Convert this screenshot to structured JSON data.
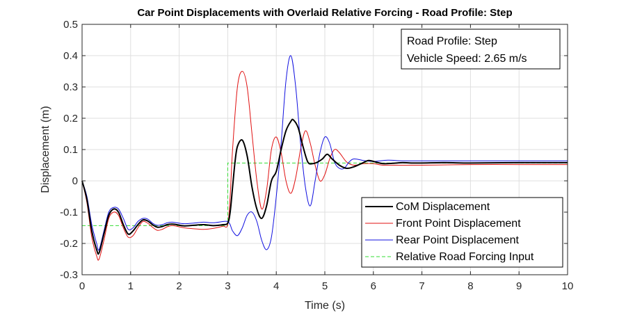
{
  "chart_data": {
    "type": "line",
    "title": "Car Point Displacements with Overlaid Relative Forcing - Road Profile: Step",
    "xlabel": "Time (s)",
    "ylabel": "Displacement (m)",
    "xlim": [
      0,
      10
    ],
    "ylim": [
      -0.3,
      0.5
    ],
    "xticks": [
      "0",
      "1",
      "2",
      "3",
      "4",
      "5",
      "6",
      "7",
      "8",
      "9",
      "10"
    ],
    "yticks": [
      "-0.3",
      "-0.2",
      "-0.1",
      "0",
      "0.1",
      "0.2",
      "0.3",
      "0.4",
      "0.5"
    ],
    "grid": true,
    "legend_position": "bottom-right",
    "annotation": [
      "Road Profile: Step",
      "Vehicle Speed: 2.65 m/s"
    ],
    "series": [
      {
        "name": "CoM Displacement",
        "color": "#000000",
        "style": "solid",
        "x": [
          0,
          0.1,
          0.2,
          0.3,
          0.35,
          0.45,
          0.55,
          0.65,
          0.75,
          0.85,
          0.95,
          1.05,
          1.15,
          1.25,
          1.35,
          1.45,
          1.55,
          1.65,
          1.75,
          1.85,
          1.95,
          2.1,
          2.3,
          2.5,
          2.7,
          2.9,
          3.0,
          3.05,
          3.1,
          3.15,
          3.2,
          3.3,
          3.4,
          3.5,
          3.6,
          3.7,
          3.8,
          3.9,
          4.0,
          4.1,
          4.2,
          4.3,
          4.35,
          4.45,
          4.55,
          4.65,
          4.75,
          4.85,
          4.95,
          5.05,
          5.15,
          5.3,
          5.45,
          5.6,
          5.75,
          5.9,
          6.05,
          6.2,
          6.4,
          6.6,
          6.8,
          7.0,
          7.5,
          8.0,
          9.0,
          10.0
        ],
        "y": [
          0,
          -0.06,
          -0.16,
          -0.22,
          -0.23,
          -0.17,
          -0.11,
          -0.09,
          -0.1,
          -0.14,
          -0.17,
          -0.16,
          -0.14,
          -0.125,
          -0.128,
          -0.14,
          -0.148,
          -0.146,
          -0.14,
          -0.138,
          -0.14,
          -0.144,
          -0.142,
          -0.14,
          -0.143,
          -0.14,
          -0.135,
          -0.1,
          -0.02,
          0.06,
          0.11,
          0.13,
          0.08,
          -0.02,
          -0.09,
          -0.12,
          -0.08,
          0.0,
          0.03,
          0.1,
          0.16,
          0.19,
          0.195,
          0.17,
          0.11,
          0.06,
          0.055,
          0.06,
          0.07,
          0.085,
          0.07,
          0.05,
          0.04,
          0.045,
          0.055,
          0.065,
          0.06,
          0.055,
          0.056,
          0.058,
          0.057,
          0.057,
          0.058,
          0.057,
          0.058,
          0.058
        ]
      },
      {
        "name": "Front Point Displacement",
        "color": "#e01010",
        "style": "solid",
        "x": [
          0,
          0.1,
          0.2,
          0.3,
          0.35,
          0.45,
          0.55,
          0.65,
          0.75,
          0.85,
          0.95,
          1.05,
          1.15,
          1.25,
          1.35,
          1.45,
          1.55,
          1.65,
          1.75,
          1.85,
          1.95,
          2.1,
          2.3,
          2.5,
          2.7,
          2.9,
          3.0,
          3.05,
          3.1,
          3.2,
          3.3,
          3.4,
          3.5,
          3.6,
          3.7,
          3.8,
          3.9,
          4.0,
          4.1,
          4.2,
          4.3,
          4.4,
          4.5,
          4.6,
          4.7,
          4.8,
          4.9,
          5.0,
          5.1,
          5.2,
          5.3,
          5.45,
          5.6,
          5.8,
          6.0,
          6.2,
          6.5,
          7.0,
          8.0,
          9.0,
          10.0
        ],
        "y": [
          0,
          -0.07,
          -0.18,
          -0.24,
          -0.25,
          -0.19,
          -0.12,
          -0.1,
          -0.11,
          -0.15,
          -0.18,
          -0.175,
          -0.15,
          -0.13,
          -0.135,
          -0.148,
          -0.158,
          -0.155,
          -0.147,
          -0.143,
          -0.145,
          -0.15,
          -0.153,
          -0.155,
          -0.152,
          -0.145,
          -0.14,
          -0.05,
          0.1,
          0.3,
          0.35,
          0.3,
          0.15,
          0.0,
          -0.09,
          -0.03,
          0.1,
          0.14,
          0.09,
          0.0,
          -0.04,
          0.01,
          0.1,
          0.16,
          0.12,
          0.05,
          0.0,
          0.02,
          0.07,
          0.1,
          0.09,
          0.06,
          0.05,
          0.055,
          0.055,
          0.05,
          0.05,
          0.05,
          0.052,
          0.052,
          0.052
        ]
      },
      {
        "name": "Rear Point Displacement",
        "color": "#1010e0",
        "style": "solid",
        "x": [
          0,
          0.1,
          0.2,
          0.3,
          0.35,
          0.45,
          0.55,
          0.65,
          0.75,
          0.85,
          0.95,
          1.05,
          1.15,
          1.25,
          1.35,
          1.45,
          1.55,
          1.65,
          1.75,
          1.85,
          1.95,
          2.1,
          2.3,
          2.5,
          2.7,
          2.9,
          3.0,
          3.05,
          3.1,
          3.2,
          3.3,
          3.4,
          3.5,
          3.6,
          3.7,
          3.8,
          3.9,
          4.0,
          4.1,
          4.2,
          4.3,
          4.4,
          4.5,
          4.6,
          4.7,
          4.8,
          4.9,
          5.0,
          5.1,
          5.2,
          5.3,
          5.4,
          5.5,
          5.6,
          5.8,
          6.0,
          6.3,
          6.6,
          7.0,
          8.0,
          9.0,
          10.0
        ],
        "y": [
          0,
          -0.05,
          -0.14,
          -0.2,
          -0.22,
          -0.16,
          -0.1,
          -0.085,
          -0.09,
          -0.12,
          -0.155,
          -0.15,
          -0.13,
          -0.12,
          -0.122,
          -0.135,
          -0.142,
          -0.14,
          -0.134,
          -0.132,
          -0.134,
          -0.137,
          -0.135,
          -0.132,
          -0.134,
          -0.13,
          -0.13,
          -0.14,
          -0.16,
          -0.175,
          -0.15,
          -0.11,
          -0.1,
          -0.13,
          -0.19,
          -0.22,
          -0.18,
          -0.05,
          0.12,
          0.32,
          0.4,
          0.3,
          0.12,
          -0.02,
          -0.08,
          0.0,
          0.09,
          0.14,
          0.12,
          0.06,
          0.04,
          0.04,
          0.06,
          0.07,
          0.065,
          0.062,
          0.066,
          0.064,
          0.064,
          0.064,
          0.064,
          0.064
        ]
      },
      {
        "name": "Relative Road Forcing Input",
        "color": "#33dd33",
        "style": "dashed",
        "x": [
          0,
          3.0,
          3.0,
          10.0
        ],
        "y": [
          -0.143,
          -0.143,
          0.057,
          0.057
        ]
      }
    ]
  }
}
